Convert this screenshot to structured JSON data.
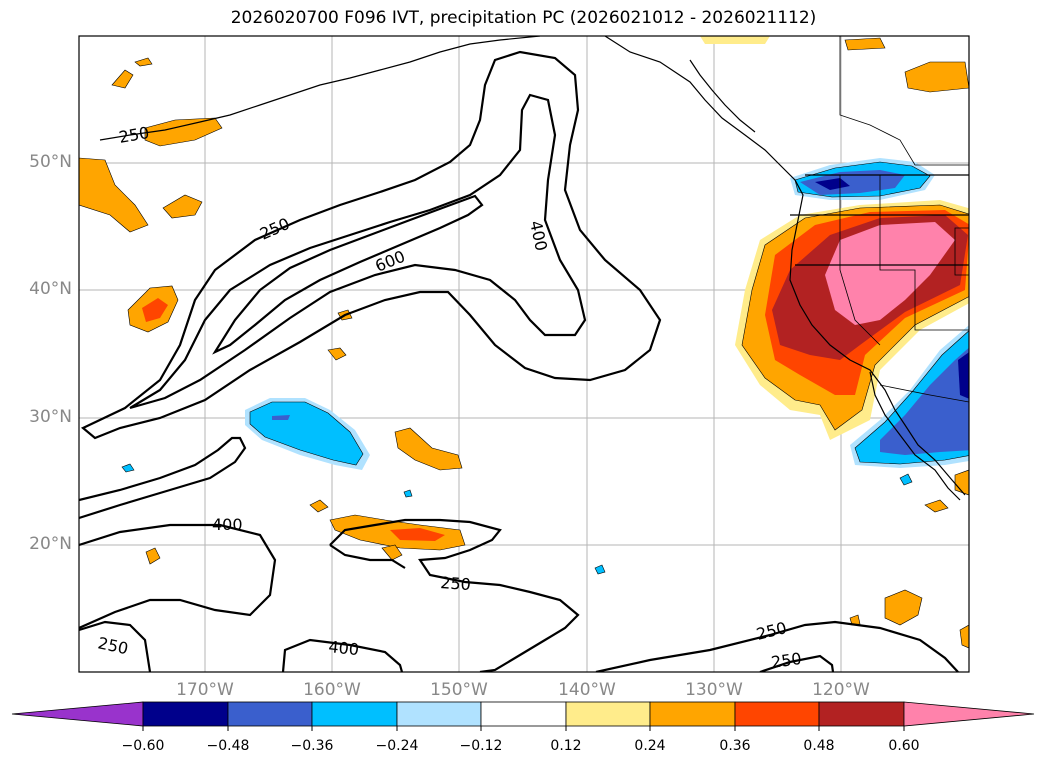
{
  "title": "2026020700 F096 IVT, precipitation PC (2026021012 - 2026021112)",
  "lat_labels": [
    "50°N",
    "40°N",
    "30°N",
    "20°N"
  ],
  "lon_labels": [
    "170°W",
    "160°W",
    "150°W",
    "140°W",
    "130°W",
    "120°W"
  ],
  "contour_labels": [
    "250",
    "250",
    "600",
    "400",
    "400",
    "250",
    "250",
    "400",
    "250",
    "250"
  ],
  "colorbar": {
    "ticks": [
      "−0.60",
      "−0.48",
      "−0.36",
      "−0.24",
      "−0.12",
      "0.12",
      "0.24",
      "0.36",
      "0.48",
      "0.60"
    ],
    "colors": [
      "#9933cc",
      "#00008b",
      "#3a5fcd",
      "#00bfff",
      "#b0e2ff",
      "#ffffff",
      "#ffec8b",
      "#ffa500",
      "#ff4500",
      "#b22222",
      "#ff82ab"
    ]
  }
}
